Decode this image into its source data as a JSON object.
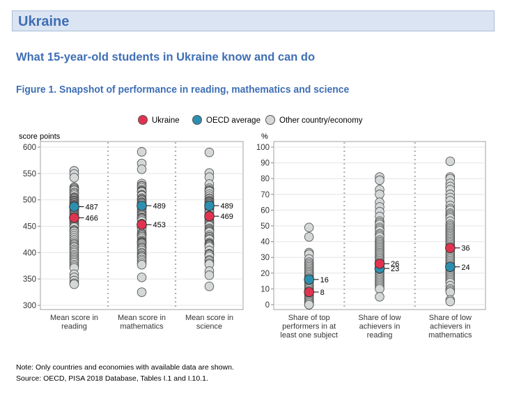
{
  "header": {
    "country": "Ukraine",
    "subtitle": "What 15-year-old students in Ukraine know and can do",
    "figure_title": "Figure 1. Snapshot of performance in reading, mathematics and science"
  },
  "legend": [
    {
      "label": "Ukraine",
      "color": "#e0334f"
    },
    {
      "label": "OECD average",
      "color": "#2c8fb0"
    },
    {
      "label": "Other country/economy",
      "color": "#d4d8d9"
    }
  ],
  "notes": {
    "note": "Note: Only countries and economies with available data are shown.",
    "source": "Source: OECD, PISA 2018 Database, Tables I.1 and I.10.1."
  },
  "chart_data": [
    {
      "type": "scatter",
      "ylabel": "score points",
      "ylim": [
        300,
        600
      ],
      "yticks": [
        300,
        350,
        400,
        450,
        500,
        550,
        600
      ],
      "grid": true,
      "categories": [
        "Mean score in reading",
        "Mean score in mathematics",
        "Mean score in science"
      ],
      "series": [
        {
          "name": "Ukraine",
          "values": [
            466,
            453,
            469
          ]
        },
        {
          "name": "OECD average",
          "values": [
            487,
            489,
            489
          ]
        },
        {
          "name": "Other country/economy",
          "values": [
            [
              555,
              549,
              542,
              524,
              522,
              520,
              518,
              514,
              512,
              509,
              505,
              504,
              503,
              501,
              499,
              498,
              497,
              495,
              494,
              493,
              491,
              490,
              489,
              487,
              485,
              484,
              482,
              481,
              480,
              478,
              476,
              475,
              474,
              472,
              470,
              468,
              466,
              463,
              460,
              458,
              456,
              454,
              452,
              450,
              448,
              443,
              441,
              440,
              436,
              432,
              428,
              424,
              420,
              417,
              415,
              412,
              410,
              406,
              403,
              400,
              396,
              393,
              390,
              387,
              384,
              381,
              377,
              374,
              371,
              359,
              353,
              347,
              342,
              340
            ],
            [
              591,
              569,
              558,
              531,
              527,
              526,
              523,
              519,
              517,
              516,
              515,
              510,
              509,
              508,
              503,
              502,
              500,
              499,
              496,
              495,
              494,
              492,
              489,
              488,
              486,
              483,
              481,
              478,
              477,
              474,
              472,
              470,
              467,
              466,
              465,
              463,
              460,
              455,
              453,
              451,
              449,
              448,
              447,
              443,
              437,
              436,
              434,
              432,
              430,
              427,
              423,
              421,
              420,
              419,
              418,
              417,
              414,
              411,
              409,
              407,
              404,
              400,
              398,
              395,
              393,
              391,
              387,
              384,
              380,
              377,
              353,
              325
            ],
            [
              590,
              551,
              543,
              530,
              522,
              519,
              517,
              516,
              511,
              507,
              503,
              502,
              499,
              497,
              496,
              495,
              493,
              492,
              490,
              489,
              487,
              485,
              484,
              483,
              482,
              481,
              478,
              477,
              475,
              471,
              470,
              468,
              466,
              463,
              460,
              458,
              456,
              455,
              452,
              451,
              446,
              444,
              442,
              440,
              439,
              433,
              430,
              429,
              426,
              425,
              419,
              417,
              416,
              415,
              413,
              411,
              404,
              398,
              397,
              396,
              393,
              386,
              384,
              380,
              378,
              365,
              357,
              336
            ]
          ]
        }
      ],
      "data_labels": [
        [
          487,
          466
        ],
        [
          489,
          453
        ],
        [
          489,
          469
        ]
      ]
    },
    {
      "type": "scatter",
      "ylabel": "%",
      "ylim": [
        0,
        100
      ],
      "yticks": [
        0,
        10,
        20,
        30,
        40,
        50,
        60,
        70,
        80,
        90,
        100
      ],
      "grid": true,
      "categories": [
        "Share of top performers in at least one subject",
        "Share of low achievers in reading",
        "Share of low achievers in mathematics"
      ],
      "series": [
        {
          "name": "Ukraine",
          "values": [
            8,
            26,
            36
          ]
        },
        {
          "name": "OECD average",
          "values": [
            16,
            23,
            24
          ]
        },
        {
          "name": "Other country/economy",
          "values": [
            [
              49,
              43,
              33,
              32,
              29,
              27,
              26,
              25,
              24,
              23,
              22,
              21,
              20,
              19,
              18,
              17,
              16,
              15,
              14,
              13,
              12,
              12,
              11,
              11,
              10,
              10,
              9,
              9,
              8,
              8,
              7,
              7,
              6,
              6,
              5,
              5,
              4,
              4,
              3,
              3,
              2,
              2,
              2,
              1,
              1,
              1,
              1,
              0,
              0,
              0,
              0
            ],
            [
              81,
              79,
              73,
              70,
              65,
              62,
              59,
              56,
              53,
              52,
              51,
              49,
              48,
              47,
              45,
              44,
              43,
              41,
              40,
              39,
              38,
              37,
              36,
              35,
              34,
              33,
              32,
              31,
              30,
              29,
              28,
              27,
              26,
              25,
              24,
              23,
              22,
              21,
              20,
              19,
              18,
              17,
              16,
              15,
              14,
              13,
              12,
              11,
              10,
              5
            ],
            [
              91,
              81,
              80,
              77,
              75,
              73,
              70,
              68,
              66,
              63,
              61,
              60,
              58,
              57,
              56,
              55,
              53,
              51,
              50,
              49,
              48,
              47,
              46,
              45,
              44,
              43,
              42,
              41,
              40,
              39,
              38,
              37,
              36,
              35,
              33,
              32,
              31,
              30,
              29,
              28,
              27,
              26,
              25,
              24,
              23,
              22,
              21,
              20,
              19,
              18,
              17,
              16,
              15,
              14,
              12,
              10,
              9,
              8,
              3,
              2
            ]
          ]
        }
      ],
      "data_labels": [
        [
          16,
          8
        ],
        [
          26,
          23
        ],
        [
          36,
          24
        ]
      ]
    }
  ]
}
